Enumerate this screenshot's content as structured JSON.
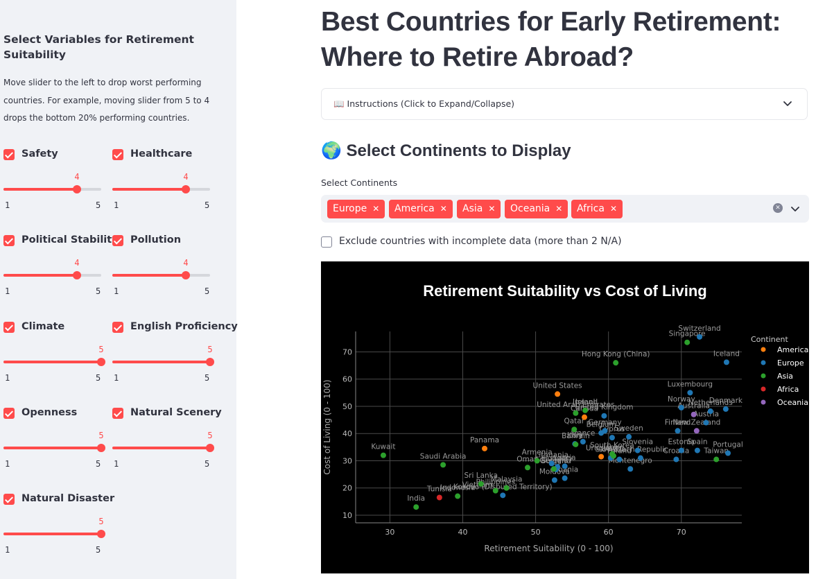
{
  "sidebar": {
    "title": "Select Variables for Retirement Suitability",
    "description": "Move slider to the left to drop worst performing countries. For example, moving slider from 5 to 4 drops the bottom 20% performing countries.",
    "controls": [
      {
        "label": "Safety",
        "checked": true,
        "value": "4",
        "min": "1",
        "max": "5"
      },
      {
        "label": "Healthcare",
        "checked": true,
        "value": "4",
        "min": "1",
        "max": "5"
      },
      {
        "label": "Political Stability",
        "checked": true,
        "value": "4",
        "min": "1",
        "max": "5"
      },
      {
        "label": "Pollution",
        "checked": true,
        "value": "4",
        "min": "1",
        "max": "5"
      },
      {
        "label": "Climate",
        "checked": true,
        "value": "5",
        "min": "1",
        "max": "5"
      },
      {
        "label": "English Proficiency",
        "checked": true,
        "value": "5",
        "min": "1",
        "max": "5"
      },
      {
        "label": "Openness",
        "checked": true,
        "value": "5",
        "min": "1",
        "max": "5"
      },
      {
        "label": "Natural Scenery",
        "checked": true,
        "value": "5",
        "min": "1",
        "max": "5"
      },
      {
        "label": "Natural Disaster",
        "checked": true,
        "value": "5",
        "min": "1",
        "max": "5"
      }
    ]
  },
  "main": {
    "title": "Best Countries for Early Retirement: Where to Retire Abroad?",
    "instructions_label": "📖 Instructions (Click to Expand/Collapse)",
    "continents_heading": "🌍 Select Continents to Display",
    "select_label": "Select Continents",
    "selected_continents": [
      "Europe",
      "America",
      "Asia",
      "Oceania",
      "Africa"
    ],
    "exclude_label": "Exclude countries with incomplete data (more than 2 N/A)",
    "exclude_checked": false
  },
  "chart_data": {
    "type": "scatter",
    "title": "Retirement Suitability vs Cost of Living",
    "xlabel": "Retirement Suitability (0 - 100)",
    "ylabel": "Cost of Living (0 - 100)",
    "xlim": [
      25.3,
      78.3
    ],
    "ylim": [
      7.2,
      77.5
    ],
    "xticks": [
      30,
      40,
      50,
      60,
      70
    ],
    "yticks": [
      10,
      20,
      30,
      40,
      50,
      60,
      70
    ],
    "grid": true,
    "legend_title": "Continent",
    "legend_position": "right",
    "series": [
      {
        "name": "America",
        "color": "#FF7F0E",
        "points": [
          {
            "label": "United States",
            "x": 53.0,
            "y": 54.5
          },
          {
            "label": "Canada",
            "x": 56.7,
            "y": 46.0
          },
          {
            "label": "Panama",
            "x": 43.0,
            "y": 34.5
          },
          {
            "label": "Uruguay",
            "x": 59.0,
            "y": 31.5
          }
        ]
      },
      {
        "name": "Europe",
        "color": "#1F77B4",
        "points": [
          {
            "label": "Switzerland",
            "x": 72.5,
            "y": 75.5
          },
          {
            "label": "Iceland",
            "x": 76.2,
            "y": 66.2
          },
          {
            "label": "Luxembourg",
            "x": 71.2,
            "y": 55.0
          },
          {
            "label": "Norway",
            "x": 70.0,
            "y": 49.5
          },
          {
            "label": "Denmark",
            "x": 76.1,
            "y": 49.0
          },
          {
            "label": "Netherlands",
            "x": 74.0,
            "y": 48.2
          },
          {
            "label": "Austria",
            "x": 73.4,
            "y": 44.0
          },
          {
            "label": "Finland",
            "x": 69.5,
            "y": 41.0
          },
          {
            "label": "United Kingdom",
            "x": 59.4,
            "y": 46.5
          },
          {
            "label": "Germany",
            "x": 59.5,
            "y": 41.0
          },
          {
            "label": "Belgium",
            "x": 59.0,
            "y": 40.2
          },
          {
            "label": "Cyprus",
            "x": 60.5,
            "y": 38.5
          },
          {
            "label": "Sweden",
            "x": 62.8,
            "y": 38.8
          },
          {
            "label": "France",
            "x": 56.5,
            "y": 37.0
          },
          {
            "label": "Italy",
            "x": 55.4,
            "y": 36.2
          },
          {
            "label": "Slovenia",
            "x": 64.0,
            "y": 33.8
          },
          {
            "label": "Estonia",
            "x": 70.0,
            "y": 33.8
          },
          {
            "label": "Spain",
            "x": 72.2,
            "y": 33.8
          },
          {
            "label": "Portugal",
            "x": 76.4,
            "y": 32.8
          },
          {
            "label": "Croatia",
            "x": 69.3,
            "y": 30.5
          },
          {
            "label": "Czech Republic",
            "x": 64.4,
            "y": 31.0
          },
          {
            "label": "Slovakia",
            "x": 60.3,
            "y": 31.0
          },
          {
            "label": "Montenegro",
            "x": 63.0,
            "y": 27.0
          },
          {
            "label": "Poland",
            "x": 61.5,
            "y": 30.5
          },
          {
            "label": "Latvia",
            "x": 54.0,
            "y": 28.0
          },
          {
            "label": "Lithuania",
            "x": 52.2,
            "y": 29.0
          },
          {
            "label": "Hungary",
            "x": 53.0,
            "y": 27.8
          },
          {
            "label": "Bulgaria",
            "x": 52.8,
            "y": 26.8
          },
          {
            "label": "Albania",
            "x": 54.0,
            "y": 23.6
          },
          {
            "label": "Moldova",
            "x": 52.6,
            "y": 22.9
          },
          {
            "label": "Kosovo (Disputed Territory)",
            "x": 45.5,
            "y": 17.3
          }
        ]
      },
      {
        "name": "Asia",
        "color": "#2CA02C",
        "points": [
          {
            "label": "Singapore",
            "x": 70.8,
            "y": 73.5
          },
          {
            "label": "Hong Kong (China)",
            "x": 61.0,
            "y": 66.0
          },
          {
            "label": "United Arab Emirates",
            "x": 55.5,
            "y": 47.5
          },
          {
            "label": "Israel",
            "x": 56.8,
            "y": 48.5
          },
          {
            "label": "Qatar",
            "x": 55.3,
            "y": 41.5
          },
          {
            "label": "Bahrain",
            "x": 55.5,
            "y": 36.0
          },
          {
            "label": "Japan",
            "x": 60.7,
            "y": 31.8
          },
          {
            "label": "South Korea",
            "x": 60.5,
            "y": 32.5
          },
          {
            "label": "Taiwan",
            "x": 74.8,
            "y": 30.5
          },
          {
            "label": "Kuwait",
            "x": 29.1,
            "y": 32.0
          },
          {
            "label": "Saudi Arabia",
            "x": 37.3,
            "y": 28.5
          },
          {
            "label": "Armenia",
            "x": 50.2,
            "y": 30.0
          },
          {
            "label": "Oman",
            "x": 48.9,
            "y": 27.5
          },
          {
            "label": "Georgia",
            "x": 52.5,
            "y": 27.0
          },
          {
            "label": "Sri Lanka",
            "x": 42.5,
            "y": 21.5
          },
          {
            "label": "Malaysia",
            "x": 46.0,
            "y": 20.0
          },
          {
            "label": "Philippines",
            "x": 44.5,
            "y": 19.0
          },
          {
            "label": "Indonesia",
            "x": 39.3,
            "y": 17.0
          },
          {
            "label": "India",
            "x": 33.6,
            "y": 13.0
          }
        ]
      },
      {
        "name": "Africa",
        "color": "#D62728",
        "points": [
          {
            "label": "Tunisia",
            "x": 36.8,
            "y": 16.5
          }
        ]
      },
      {
        "name": "Oceania",
        "color": "#9467BD",
        "points": [
          {
            "label": "Australia",
            "x": 71.7,
            "y": 47.0
          },
          {
            "label": "New Zealand",
            "x": 72.1,
            "y": 41.0
          }
        ]
      }
    ],
    "extra_labels": [
      {
        "label": "Ireland",
        "x": 56.8,
        "y": 48.5
      },
      {
        "label": "Vietnam",
        "x": 42.0,
        "y": 18.0
      }
    ]
  }
}
